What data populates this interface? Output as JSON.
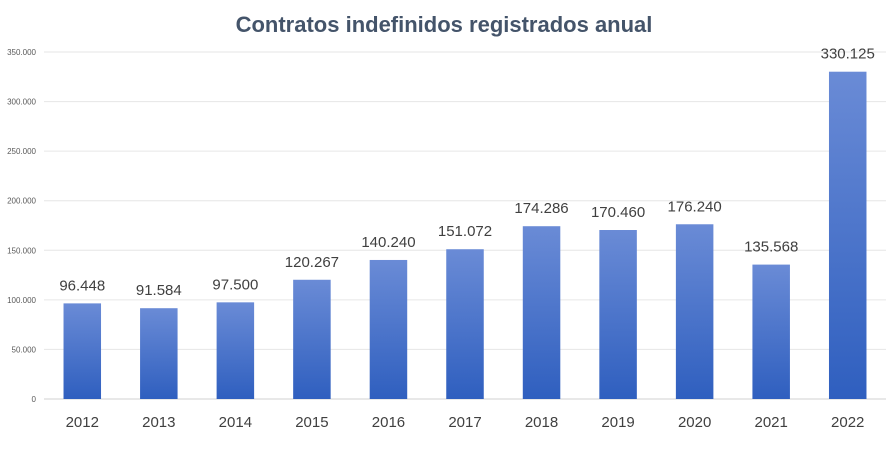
{
  "chart_data": {
    "type": "bar",
    "title": "Contratos indefinidos registrados anual",
    "xlabel": "",
    "ylabel": "",
    "categories": [
      "2012",
      "2013",
      "2014",
      "2015",
      "2016",
      "2017",
      "2018",
      "2019",
      "2020",
      "2021",
      "2022"
    ],
    "values": [
      96448,
      91584,
      97500,
      120267,
      140240,
      151072,
      174286,
      170460,
      176240,
      135568,
      330125
    ],
    "data_labels": [
      "96.448",
      "91.584",
      "97.500",
      "120.267",
      "140.240",
      "151.072",
      "174.286",
      "170.460",
      "176.240",
      "135.568",
      "330.125"
    ],
    "ylim": [
      0,
      350000
    ],
    "yticks": [
      0,
      50000,
      100000,
      150000,
      200000,
      250000,
      300000,
      350000
    ],
    "ytick_labels": [
      "0",
      "50.000",
      "100.000",
      "150.000",
      "200.000",
      "250.000",
      "300.000",
      "350.000"
    ],
    "grid": true,
    "bar_color_top": "#6a8bd6",
    "bar_color_bottom": "#2f5fbf"
  }
}
